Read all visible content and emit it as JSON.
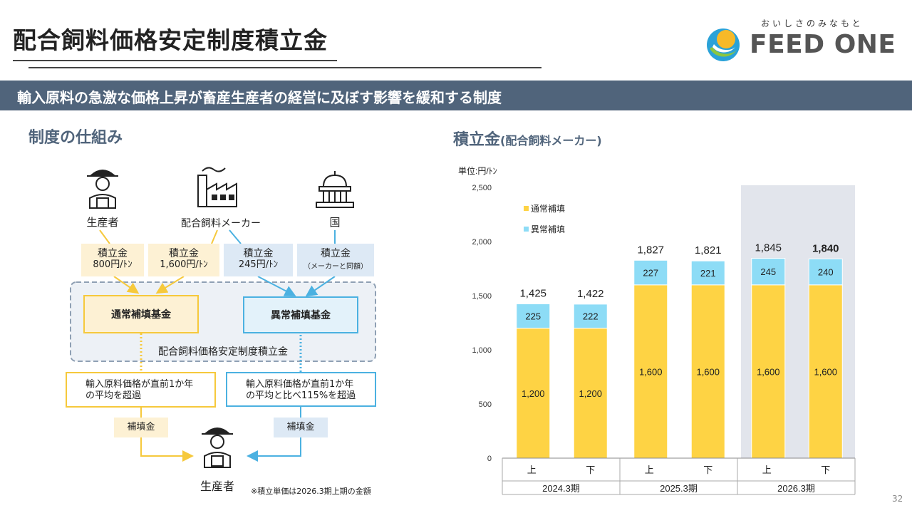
{
  "header": {
    "title": "配合飼料価格安定制度積立金",
    "logo_tagline": "おいしさのみなもと",
    "logo_name": "FEED ONE"
  },
  "banner": {
    "text": "輸入原料の急激な価格上昇が畜産生産者の経営に及ぼす影響を緩和する制度"
  },
  "left": {
    "section_title": "制度の仕組み",
    "actors": {
      "producer": "生産者",
      "maker": "配合飼料メーカー",
      "country": "国"
    },
    "contributions": [
      {
        "label": "積立金",
        "amount": "800円/ﾄﾝ"
      },
      {
        "label": "積立金",
        "amount": "1,600円/ﾄﾝ"
      },
      {
        "label": "積立金",
        "amount": "245円/ﾄﾝ"
      },
      {
        "label": "積立金",
        "amount": "（メーカーと同額）"
      }
    ],
    "funds": {
      "normal": "通常補填基金",
      "abnormal": "異常補填基金",
      "system": "配合飼料価格安定制度積立金"
    },
    "conditions": {
      "normal": [
        "輸入原料価格が直前1か年",
        "の平均を超過"
      ],
      "abnormal": [
        "輸入原料価格が直前1か年",
        "の平均と比べ115%を超過"
      ]
    },
    "payout": {
      "normal": "補填金",
      "abnormal": "補填金"
    },
    "recipient": "生産者",
    "note": "※積立単価は2026.3期上期の金額",
    "colors": {
      "normal": "#f6c93c",
      "abnormal": "#4bb1e1"
    }
  },
  "right": {
    "section_title": "積立金",
    "section_subtitle": "(配合飼料メーカー)",
    "unit": "単位:円/ﾄﾝ"
  },
  "page_number": "32",
  "chart_data": {
    "type": "bar",
    "stacked": true,
    "categories": [
      "上",
      "下",
      "上",
      "下",
      "上",
      "下"
    ],
    "groups": [
      {
        "label": "2024.3期",
        "span": 2
      },
      {
        "label": "2025.3期",
        "span": 2
      },
      {
        "label": "2026.3期",
        "span": 2
      }
    ],
    "series": [
      {
        "name": "通常補填",
        "values": [
          1200,
          1200,
          1600,
          1600,
          1600,
          1600
        ],
        "color": "#fed344"
      },
      {
        "name": "異常補填",
        "values": [
          225,
          222,
          227,
          221,
          245,
          240
        ],
        "color": "#8ddcf6"
      }
    ],
    "totals": [
      "1,425",
      "1,422",
      "1,827",
      "1,821",
      "1,845",
      "1,840"
    ],
    "ylim": [
      0,
      2500
    ],
    "yticks": [
      "0",
      "500",
      "1,000",
      "1,500",
      "2,000",
      "2,500"
    ],
    "legend": "top-left",
    "highlight_group": "2026.3期",
    "grid": false
  }
}
